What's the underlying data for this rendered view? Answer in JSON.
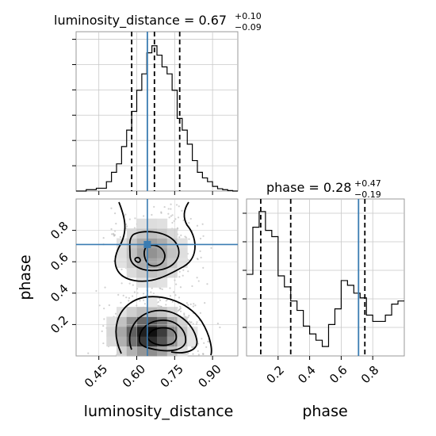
{
  "chart_data": {
    "type": "corner",
    "truth_color": "#3a7cb2",
    "truth": {
      "luminosity_distance": 0.642,
      "phase": 0.71
    },
    "panels": {
      "ld_hist": {
        "title_param": "luminosity_distance",
        "title_value": "0.67",
        "title_plus": "+0.10",
        "title_minus": "−0.09",
        "xlim": [
          0.36,
          1.0
        ],
        "quantiles": [
          0.58,
          0.67,
          0.77
        ],
        "ymax": 0.34,
        "bins": [
          0.36,
          0.4,
          0.44,
          0.48,
          0.5,
          0.52,
          0.54,
          0.56,
          0.58,
          0.6,
          0.62,
          0.64,
          0.66,
          0.68,
          0.7,
          0.72,
          0.74,
          0.76,
          0.78,
          0.8,
          0.82,
          0.84,
          0.86,
          0.88,
          0.9,
          0.92,
          0.94,
          0.96,
          0.98,
          1.0
        ],
        "counts": [
          0,
          0.003,
          0.006,
          0.02,
          0.04,
          0.058,
          0.095,
          0.13,
          0.17,
          0.215,
          0.25,
          0.295,
          0.31,
          0.29,
          0.265,
          0.25,
          0.215,
          0.155,
          0.13,
          0.1,
          0.065,
          0.04,
          0.028,
          0.02,
          0.01,
          0.005,
          0.003,
          0.001,
          0
        ]
      },
      "phase_hist": {
        "title_param": "phase",
        "title_value": "0.28",
        "title_plus": "+0.47",
        "title_minus": "−0.19",
        "xlim": [
          0.0,
          1.0
        ],
        "quantiles": [
          0.09,
          0.28,
          0.75
        ],
        "ymax": 1.0,
        "bins": [
          0.0,
          0.04,
          0.08,
          0.12,
          0.16,
          0.2,
          0.24,
          0.28,
          0.32,
          0.36,
          0.4,
          0.44,
          0.48,
          0.52,
          0.56,
          0.6,
          0.64,
          0.68,
          0.72,
          0.76,
          0.8,
          0.84,
          0.88,
          0.92,
          0.96,
          1.0
        ],
        "counts": [
          0.52,
          0.82,
          0.92,
          0.8,
          0.76,
          0.51,
          0.44,
          0.35,
          0.29,
          0.19,
          0.14,
          0.1,
          0.06,
          0.2,
          0.3,
          0.48,
          0.45,
          0.4,
          0.37,
          0.26,
          0.22,
          0.22,
          0.26,
          0.33,
          0.35
        ]
      },
      "joint": {
        "xlim": [
          0.36,
          1.0
        ],
        "ylim": [
          0.0,
          1.0
        ],
        "ld_peak": 0.65,
        "phase_peak": 0.14
      }
    },
    "x_ticks_ld": [
      "0.45",
      "0.60",
      "0.75",
      "0.90"
    ],
    "x_ticks_phase": [
      "0.2",
      "0.4",
      "0.6",
      "0.8"
    ],
    "y_ticks_phase": [
      "0.2",
      "0.4",
      "0.6",
      "0.8"
    ],
    "labels": {
      "x_left": "luminosity_distance",
      "x_right": "phase",
      "y_joint": "phase"
    }
  }
}
